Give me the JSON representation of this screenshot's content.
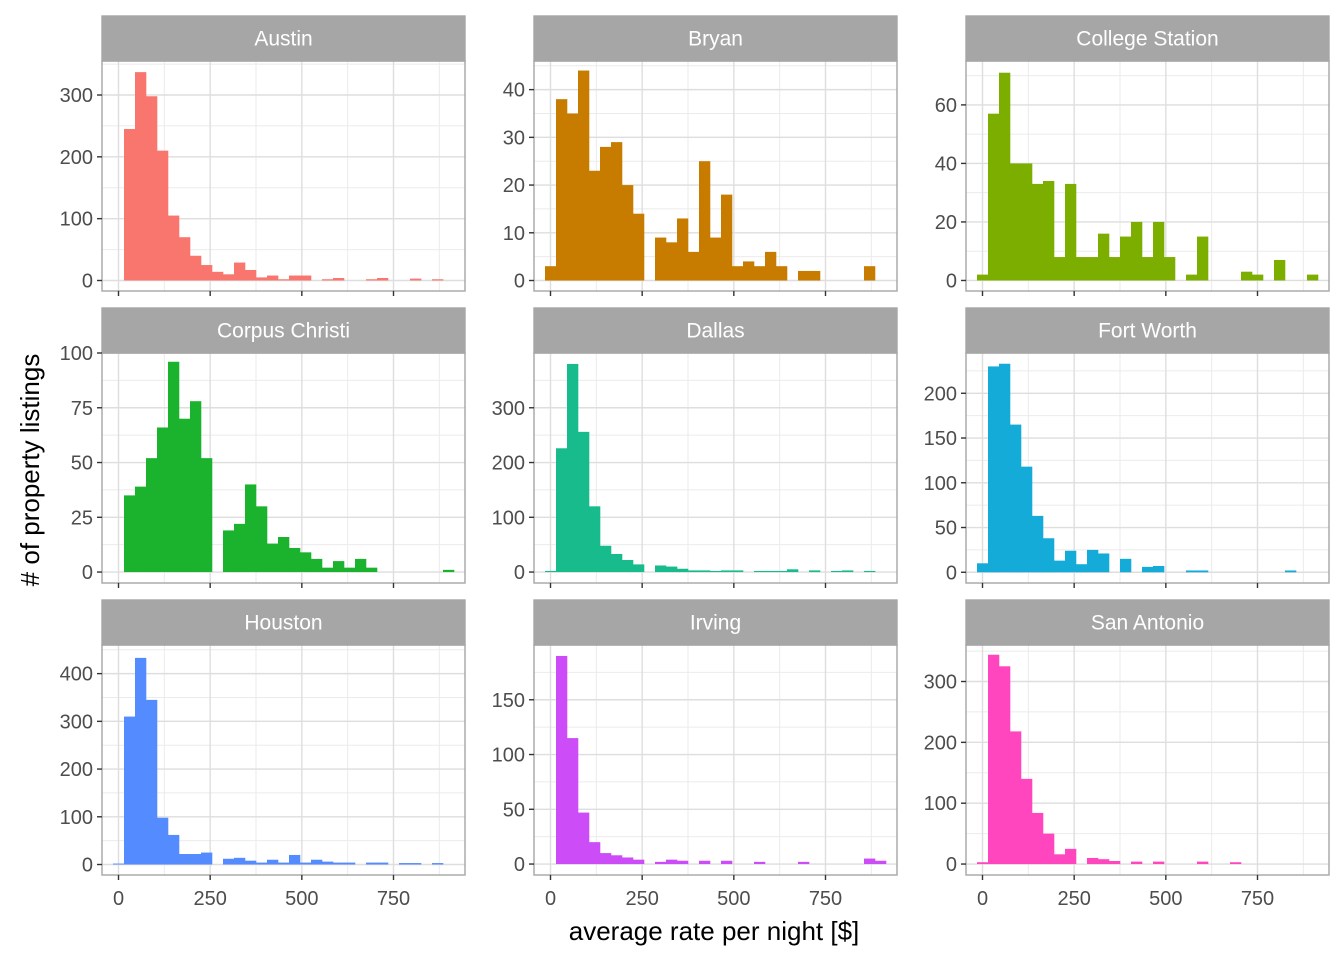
{
  "chart_data": {
    "type": "bar",
    "subtype": "faceted-histogram",
    "xlabel": "average rate per night [$]",
    "ylabel": "# of property listings",
    "x_ticks": [
      0,
      250,
      500,
      750
    ],
    "xlim": [
      -45,
      945
    ],
    "bin_width": 30,
    "bin_starts": [
      0,
      30,
      60,
      90,
      120,
      150,
      180,
      210,
      240,
      270,
      300,
      330,
      360,
      390,
      420,
      450,
      480,
      510,
      540,
      570,
      600,
      630,
      660,
      690,
      720,
      750,
      780,
      810,
      840,
      870,
      900
    ],
    "grid": true,
    "legend": "none",
    "strip_background": "#a6a6a6",
    "panels": [
      {
        "name": "Austin",
        "color": "#F8766D",
        "ylim": [
          -17,
          355
        ],
        "y_ticks": [
          0,
          100,
          200,
          300
        ],
        "values": [
          0,
          245,
          337,
          298,
          210,
          105,
          70,
          40,
          25,
          14,
          10,
          29,
          17,
          5,
          8,
          2,
          8,
          8,
          0,
          2,
          4,
          0,
          0,
          2,
          4,
          0,
          0,
          3,
          0,
          2,
          0
        ]
      },
      {
        "name": "Bryan",
        "color": "#C77C00",
        "ylim": [
          -2.2,
          46
        ],
        "y_ticks": [
          0,
          10,
          20,
          30,
          40
        ],
        "values": [
          3,
          38,
          35,
          44,
          23,
          28,
          29,
          20,
          14,
          0,
          9,
          8,
          13,
          6,
          25,
          9,
          18,
          3,
          4,
          3,
          6,
          3,
          0,
          2,
          2,
          0,
          0,
          0,
          0,
          3,
          0
        ]
      },
      {
        "name": "College Station",
        "color": "#7CAE00",
        "ylim": [
          -3.6,
          75
        ],
        "y_ticks": [
          0,
          20,
          40,
          60
        ],
        "values": [
          2,
          57,
          71,
          40,
          40,
          33,
          34,
          8,
          33,
          8,
          8,
          16,
          8,
          15,
          20,
          8,
          20,
          8,
          0,
          2,
          15,
          0,
          0,
          0,
          3,
          2,
          0,
          7,
          0,
          0,
          2
        ]
      },
      {
        "name": "Corpus Christi",
        "color": "#1BB32E",
        "ylim": [
          -5,
          100
        ],
        "y_ticks": [
          0,
          25,
          50,
          75,
          100
        ],
        "values": [
          0,
          35,
          39,
          52,
          66,
          96,
          70,
          78,
          52,
          0,
          19,
          22,
          40,
          30,
          13,
          16,
          11,
          9,
          6,
          2,
          5,
          2,
          6,
          2,
          0,
          0,
          0,
          0,
          0,
          0,
          1
        ]
      },
      {
        "name": "Dallas",
        "color": "#17BB8C",
        "ylim": [
          -20,
          400
        ],
        "y_ticks": [
          0,
          100,
          200,
          300
        ],
        "values": [
          2,
          226,
          380,
          256,
          120,
          48,
          33,
          22,
          14,
          0,
          12,
          10,
          6,
          3,
          3,
          2,
          3,
          3,
          0,
          2,
          2,
          2,
          5,
          0,
          3,
          0,
          2,
          3,
          0,
          2,
          0
        ]
      },
      {
        "name": "Fort Worth",
        "color": "#14ABD9",
        "ylim": [
          -12,
          245
        ],
        "y_ticks": [
          0,
          50,
          100,
          150,
          200
        ],
        "values": [
          10,
          230,
          233,
          165,
          118,
          63,
          38,
          13,
          24,
          9,
          25,
          21,
          0,
          15,
          0,
          6,
          7,
          0,
          0,
          2,
          2,
          0,
          0,
          0,
          0,
          0,
          0,
          0,
          2,
          0,
          0
        ]
      },
      {
        "name": "Houston",
        "color": "#548BFF",
        "ylim": [
          -22,
          460
        ],
        "y_ticks": [
          0,
          100,
          200,
          300,
          400
        ],
        "values": [
          2,
          310,
          433,
          345,
          98,
          62,
          22,
          22,
          25,
          0,
          12,
          14,
          8,
          4,
          10,
          4,
          20,
          4,
          10,
          6,
          4,
          4,
          0,
          4,
          4,
          0,
          3,
          3,
          0,
          3,
          0
        ]
      },
      {
        "name": "Irving",
        "color": "#CC4CF8",
        "ylim": [
          -10,
          200
        ],
        "y_ticks": [
          0,
          50,
          100,
          150
        ],
        "values": [
          0,
          190,
          115,
          47,
          20,
          10,
          8,
          6,
          4,
          0,
          2,
          4,
          3,
          0,
          3,
          0,
          3,
          0,
          0,
          2,
          0,
          0,
          0,
          2,
          0,
          0,
          0,
          0,
          0,
          5,
          3
        ]
      },
      {
        "name": "San Antonio",
        "color": "#FF46BE",
        "ylim": [
          -18,
          360
        ],
        "y_ticks": [
          0,
          100,
          200,
          300
        ],
        "values": [
          3,
          344,
          325,
          218,
          140,
          84,
          50,
          16,
          25,
          0,
          10,
          8,
          5,
          0,
          4,
          0,
          4,
          0,
          0,
          0,
          4,
          0,
          0,
          3,
          0,
          0,
          0,
          0,
          0,
          0,
          0
        ]
      }
    ]
  }
}
